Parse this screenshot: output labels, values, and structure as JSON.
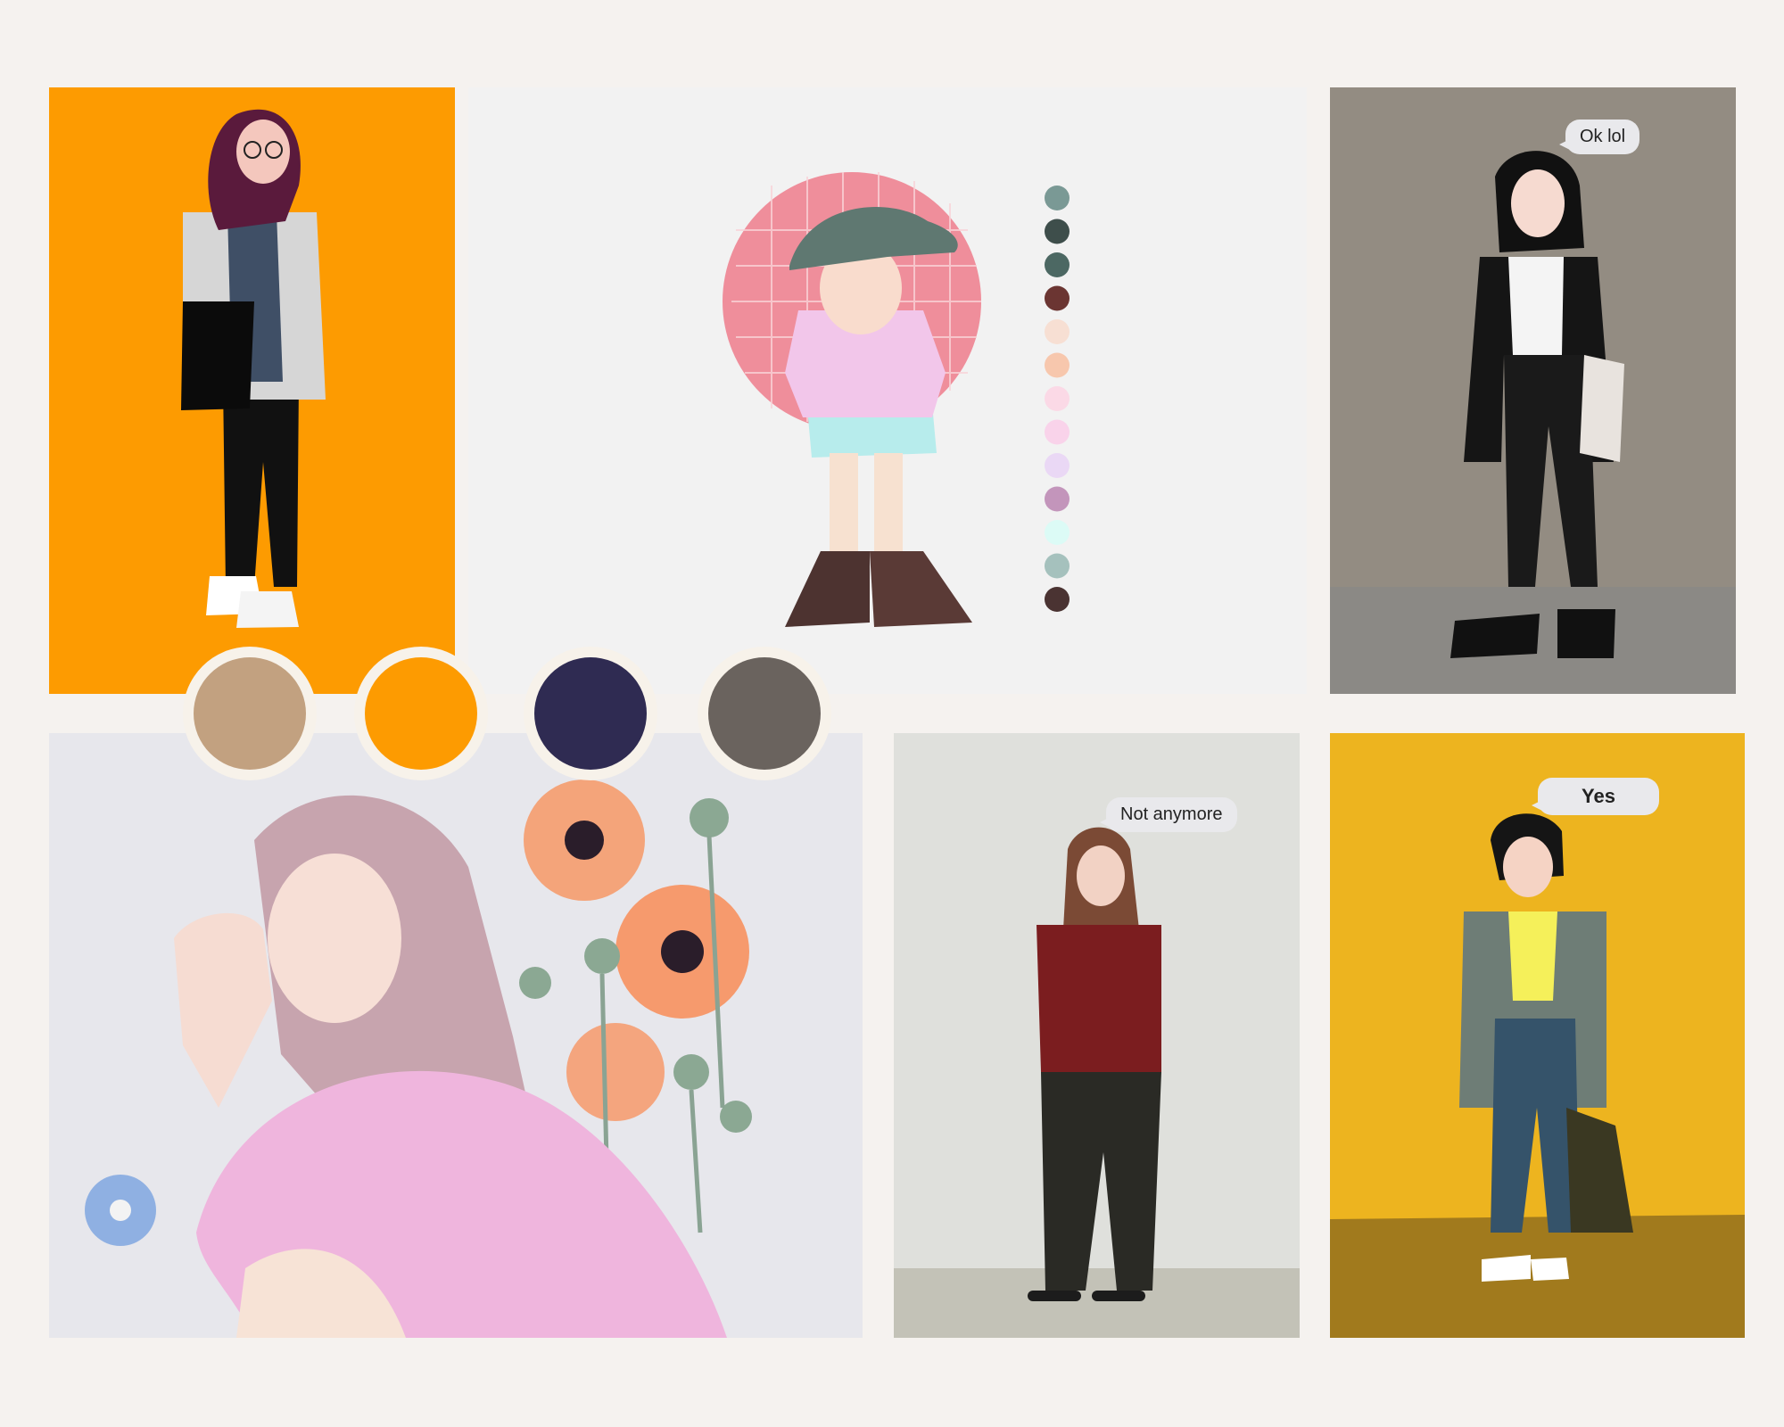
{
  "bubbles": {
    "ok_lol": "Ok lol",
    "not_anymore": "Not anymore",
    "yes": "Yes"
  },
  "colors": {
    "page_background": "#f5f2ef",
    "orange_panel": "#fd9b01",
    "taupe_panel": "#938c82",
    "light_grey_panel": "#dfe0dc",
    "mustard_panel": "#edb41f",
    "child_panel": "#f2f2f2"
  },
  "main_palette": [
    "#c2a180",
    "#fd9b01",
    "#2f2b52",
    "#6a635e"
  ],
  "child_palette": [
    "#7a9995",
    "#3e4e4b",
    "#4c6863",
    "#6b3532",
    "#f7dfd3",
    "#f7c7ad",
    "#fbd9e6",
    "#f9d3ea",
    "#ead8f5",
    "#c395bb",
    "#dcfbf6",
    "#a5c1bd",
    "#4a3332"
  ]
}
